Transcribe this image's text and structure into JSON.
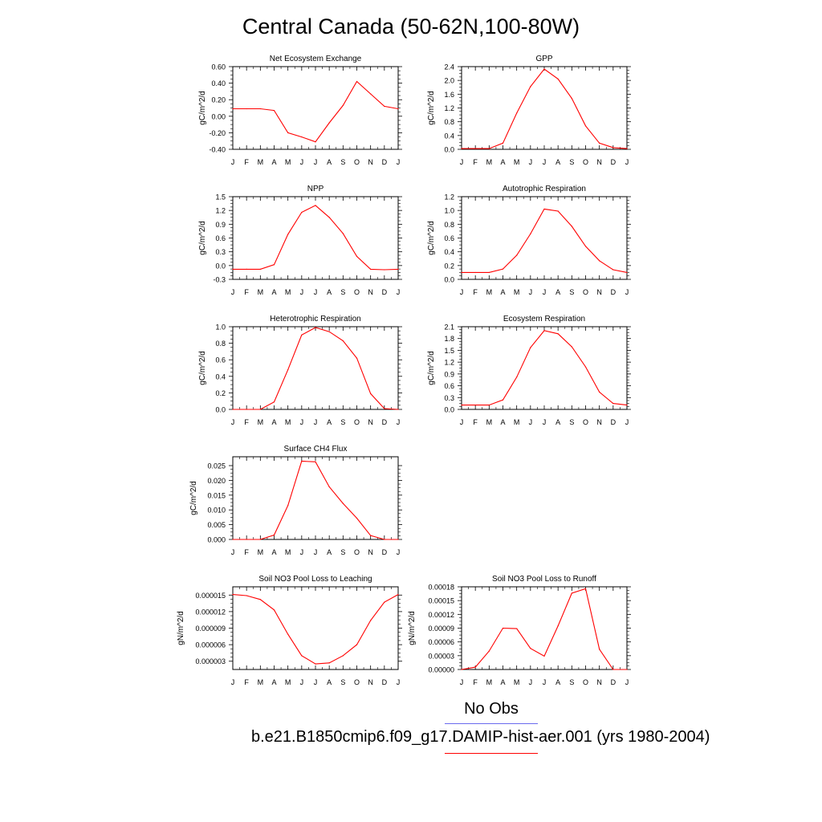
{
  "title": "Central Canada (50-62N,100-80W)",
  "colors": {
    "model": "#ff0000",
    "obs": "#6a6aee",
    "axis": "#000000"
  },
  "legend": {
    "obs_label": "No Obs",
    "model_label": "b.e21.B1850cmip6.f09_g17.DAMIP-hist-aer.001 (yrs 1980-2004)"
  },
  "chart_data": [
    {
      "id": "nee",
      "type": "line",
      "title": "Net Ecosystem Exchange",
      "ylabel": "gC/m^2/d",
      "x": [
        "J",
        "F",
        "M",
        "A",
        "M",
        "J",
        "J",
        "A",
        "S",
        "O",
        "N",
        "D",
        "J"
      ],
      "ylim": [
        -0.4,
        0.6
      ],
      "yticks": [
        "-0.40",
        "-0.20",
        "0.00",
        "0.20",
        "0.40",
        "0.60"
      ],
      "series": [
        {
          "values": [
            0.09,
            0.09,
            0.09,
            0.07,
            -0.2,
            -0.25,
            -0.31,
            -0.08,
            0.13,
            0.42,
            0.27,
            0.12,
            0.09
          ]
        }
      ]
    },
    {
      "id": "gpp",
      "type": "line",
      "title": "GPP",
      "ylabel": "gC/m^2/d",
      "x": [
        "J",
        "F",
        "M",
        "A",
        "M",
        "J",
        "J",
        "A",
        "S",
        "O",
        "N",
        "D",
        "J"
      ],
      "ylim": [
        0,
        2.4
      ],
      "yticks": [
        "0.0",
        "0.4",
        "0.8",
        "1.2",
        "1.6",
        "2.0",
        "2.4"
      ],
      "series": [
        {
          "values": [
            0.02,
            0.02,
            0.02,
            0.18,
            1.05,
            1.82,
            2.33,
            2.04,
            1.48,
            0.68,
            0.18,
            0.05,
            0.02
          ]
        }
      ]
    },
    {
      "id": "npp",
      "type": "line",
      "title": "NPP",
      "ylabel": "gC/m^2/d",
      "x": [
        "J",
        "F",
        "M",
        "A",
        "M",
        "J",
        "J",
        "A",
        "S",
        "O",
        "N",
        "D",
        "J"
      ],
      "ylim": [
        -0.3,
        1.5
      ],
      "yticks": [
        "-0.3",
        "0.0",
        "0.3",
        "0.6",
        "0.9",
        "1.2",
        "1.5"
      ],
      "series": [
        {
          "values": [
            -0.08,
            -0.08,
            -0.08,
            0.02,
            0.68,
            1.16,
            1.31,
            1.05,
            0.7,
            0.2,
            -0.08,
            -0.09,
            -0.08
          ]
        }
      ]
    },
    {
      "id": "ar",
      "type": "line",
      "title": "Autotrophic Respiration",
      "ylabel": "gC/m^2/d",
      "x": [
        "J",
        "F",
        "M",
        "A",
        "M",
        "J",
        "J",
        "A",
        "S",
        "O",
        "N",
        "D",
        "J"
      ],
      "ylim": [
        0,
        1.2
      ],
      "yticks": [
        "0.0",
        "0.2",
        "0.4",
        "0.6",
        "0.8",
        "1.0",
        "1.2"
      ],
      "series": [
        {
          "values": [
            0.1,
            0.1,
            0.1,
            0.15,
            0.35,
            0.66,
            1.02,
            0.99,
            0.77,
            0.48,
            0.27,
            0.14,
            0.1
          ]
        }
      ]
    },
    {
      "id": "hr",
      "type": "line",
      "title": "Heterotrophic Respiration",
      "ylabel": "gC/m^2/d",
      "x": [
        "J",
        "F",
        "M",
        "A",
        "M",
        "J",
        "J",
        "A",
        "S",
        "O",
        "N",
        "D",
        "J"
      ],
      "ylim": [
        0,
        1.0
      ],
      "yticks": [
        "0.0",
        "0.2",
        "0.4",
        "0.6",
        "0.8",
        "1.0"
      ],
      "series": [
        {
          "values": [
            0.0,
            0.0,
            0.0,
            0.09,
            0.48,
            0.9,
            0.99,
            0.94,
            0.83,
            0.62,
            0.19,
            0.01,
            0.0
          ]
        }
      ]
    },
    {
      "id": "er",
      "type": "line",
      "title": "Ecosystem Respiration",
      "ylabel": "gC/m^2/d",
      "x": [
        "J",
        "F",
        "M",
        "A",
        "M",
        "J",
        "J",
        "A",
        "S",
        "O",
        "N",
        "D",
        "J"
      ],
      "ylim": [
        0,
        2.1
      ],
      "yticks": [
        "0.0",
        "0.3",
        "0.6",
        "0.9",
        "1.2",
        "1.5",
        "1.8",
        "2.1"
      ],
      "series": [
        {
          "values": [
            0.11,
            0.11,
            0.11,
            0.24,
            0.82,
            1.57,
            2.0,
            1.92,
            1.59,
            1.08,
            0.44,
            0.15,
            0.11
          ]
        }
      ]
    },
    {
      "id": "ch4",
      "type": "line",
      "title": "Surface CH4 Flux",
      "ylabel": "gC/m^2/d",
      "x": [
        "J",
        "F",
        "M",
        "A",
        "M",
        "J",
        "J",
        "A",
        "S",
        "O",
        "N",
        "D",
        "J"
      ],
      "ylim": [
        0,
        0.028
      ],
      "yticks": [
        "0.000",
        "0.005",
        "0.010",
        "0.015",
        "0.020",
        "0.025"
      ],
      "series": [
        {
          "values": [
            0.0,
            0.0,
            0.0,
            0.0015,
            0.0115,
            0.0265,
            0.0263,
            0.0178,
            0.0122,
            0.0072,
            0.0013,
            0.0,
            0.0
          ]
        }
      ]
    },
    {
      "id": "leach",
      "type": "line",
      "title": "Soil NO3 Pool Loss to Leaching",
      "ylabel": "gN/m^2/d",
      "x": [
        "J",
        "F",
        "M",
        "A",
        "M",
        "J",
        "J",
        "A",
        "S",
        "O",
        "N",
        "D",
        "J"
      ],
      "ylim": [
        1.5e-06,
        1.65e-05
      ],
      "yticks": [
        "0.000003",
        "0.000006",
        "0.000009",
        "0.000012",
        "0.000015"
      ],
      "series": [
        {
          "values": [
            1.51e-05,
            1.49e-05,
            1.42e-05,
            1.23e-05,
            7.9e-06,
            4e-06,
            2.5e-06,
            2.7e-06,
            4e-06,
            6e-06,
            1.04e-05,
            1.37e-05,
            1.51e-05
          ]
        }
      ]
    },
    {
      "id": "runoff",
      "type": "line",
      "title": "Soil NO3 Pool Loss to Runoff",
      "ylabel": "gN/m^2/d",
      "x": [
        "J",
        "F",
        "M",
        "A",
        "M",
        "J",
        "J",
        "A",
        "S",
        "O",
        "N",
        "D",
        "J"
      ],
      "ylim": [
        0,
        0.00018
      ],
      "yticks": [
        "0.00000",
        "0.00003",
        "0.00006",
        "0.00009",
        "0.00012",
        "0.00015",
        "0.00018"
      ],
      "series": [
        {
          "values": [
            0.0,
            5e-06,
            4e-05,
            9e-05,
            8.9e-05,
            4.6e-05,
            2.9e-05,
            9.5e-05,
            0.000166,
            0.000176,
            4.4e-05,
            0.0,
            0.0
          ]
        }
      ]
    }
  ]
}
